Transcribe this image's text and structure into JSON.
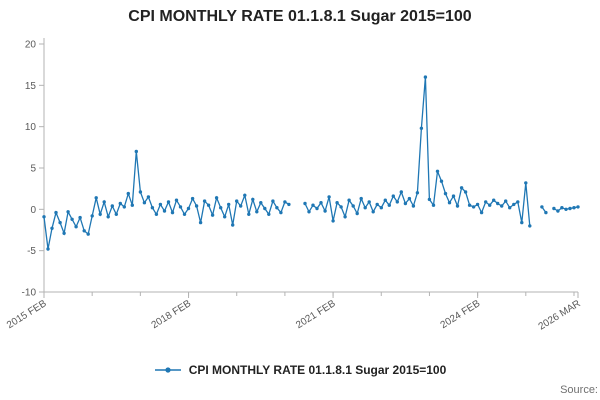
{
  "title": "CPI MONTHLY RATE 01.1.8.1 Sugar 2015=100",
  "legend": {
    "label": "CPI MONTHLY RATE 01.1.8.1 Sugar 2015=100"
  },
  "source": {
    "label": "Source:"
  },
  "colors": {
    "line": "#1f77b4",
    "axis": "#b3b3b3",
    "tick_text": "#595959"
  },
  "chart_data": {
    "type": "line",
    "title": "CPI MONTHLY RATE 01.1.8.1 Sugar 2015=100",
    "xlabel": "",
    "ylabel": "",
    "x_start": "2015-02",
    "x_end": "2026-03",
    "frequency": "monthly",
    "ylim": [
      -10,
      20
    ],
    "y_ticks": [
      -10,
      -5,
      0,
      5,
      10,
      15,
      20
    ],
    "x_tick_labels": [
      {
        "index": 0,
        "label": "2015 FEB"
      },
      {
        "index": 36,
        "label": "2018 FEB"
      },
      {
        "index": 72,
        "label": "2021 FEB"
      },
      {
        "index": 108,
        "label": "2024 FEB"
      },
      {
        "index": 133,
        "label": "2026 MAR"
      }
    ],
    "minor_tick_indices": [
      0,
      12,
      24,
      36,
      48,
      60,
      72,
      84,
      96,
      108,
      120,
      132
    ],
    "grid": false,
    "legend_position": "bottom",
    "series": [
      {
        "name": "CPI MONTHLY RATE 01.1.8.1 Sugar 2015=100",
        "values": [
          -0.9,
          -4.8,
          -2.3,
          -0.4,
          -1.6,
          -2.9,
          -0.3,
          -1.2,
          -2.1,
          -1.0,
          -2.6,
          -3.0,
          -0.8,
          1.4,
          -0.6,
          0.9,
          -0.9,
          0.4,
          -0.6,
          0.7,
          0.3,
          1.9,
          0.5,
          7.0,
          2.1,
          0.8,
          1.5,
          0.2,
          -0.6,
          0.6,
          -0.2,
          0.9,
          -0.4,
          1.1,
          0.3,
          -0.6,
          0.1,
          1.3,
          0.4,
          -1.6,
          1.0,
          0.5,
          -0.7,
          1.4,
          0.2,
          -0.9,
          0.6,
          -1.9,
          1.0,
          0.4,
          1.7,
          -0.6,
          1.2,
          -0.3,
          0.8,
          0.1,
          -0.6,
          1.0,
          0.2,
          -0.4,
          0.9,
          0.6,
          null,
          null,
          null,
          0.7,
          -0.3,
          0.5,
          0.1,
          0.8,
          -0.2,
          1.5,
          -1.4,
          0.8,
          0.3,
          -0.9,
          1.1,
          0.4,
          -0.5,
          1.3,
          0.2,
          0.9,
          -0.3,
          0.6,
          0.2,
          1.1,
          0.5,
          1.6,
          0.9,
          2.1,
          0.7,
          1.3,
          0.4,
          2.0,
          9.8,
          16.0,
          1.2,
          0.5,
          4.6,
          3.4,
          1.9,
          0.8,
          1.6,
          0.4,
          2.6,
          2.1,
          0.5,
          0.3,
          0.6,
          -0.4,
          0.9,
          0.5,
          1.1,
          0.7,
          0.4,
          1.0,
          0.2,
          0.6,
          0.9,
          -1.6,
          3.2,
          -2.0,
          null,
          null,
          0.3,
          -0.4,
          null,
          0.1,
          -0.2,
          0.2,
          0.0,
          0.1,
          0.2,
          0.3
        ]
      }
    ]
  }
}
